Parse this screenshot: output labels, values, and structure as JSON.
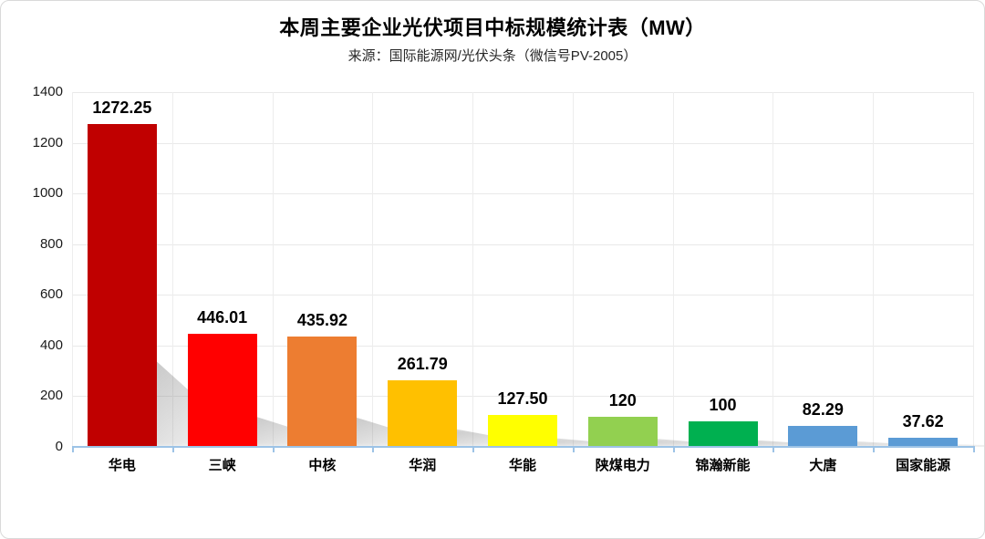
{
  "window": {
    "background": "#ffffff",
    "border_color": "#d9d9d9"
  },
  "chart_data": {
    "type": "bar",
    "title": "本周主要企业光伏项目中标规模统计表（MW）",
    "subtitle": "来源：国际能源网/光伏头条（微信号PV-2005）",
    "categories": [
      "华电",
      "三峡",
      "中核",
      "华润",
      "华能",
      "陕煤电力",
      "锦瀚新能",
      "大唐",
      "国家能源"
    ],
    "values": [
      1272.25,
      446.01,
      435.92,
      261.79,
      127.5,
      120,
      100,
      82.29,
      37.62
    ],
    "value_labels": [
      "1272.25",
      "446.01",
      "435.92",
      "261.79",
      "127.50",
      "120",
      "100",
      "82.29",
      "37.62"
    ],
    "bar_colors": [
      "#C00000",
      "#FF0000",
      "#ED7D31",
      "#FFC000",
      "#FFFF00",
      "#92D050",
      "#00B050",
      "#5B9BD5",
      "#5B9BD5"
    ],
    "xlabel": "",
    "ylabel": "",
    "ylim": [
      0,
      1400
    ],
    "y_ticks": [
      0,
      200,
      400,
      600,
      800,
      1000,
      1200,
      1400
    ],
    "grid": "on",
    "legend": "none",
    "axis_color": "#9DC3E6",
    "gridline_color": "#e9e9e9",
    "shadow_style": "perspective-lower-right"
  }
}
